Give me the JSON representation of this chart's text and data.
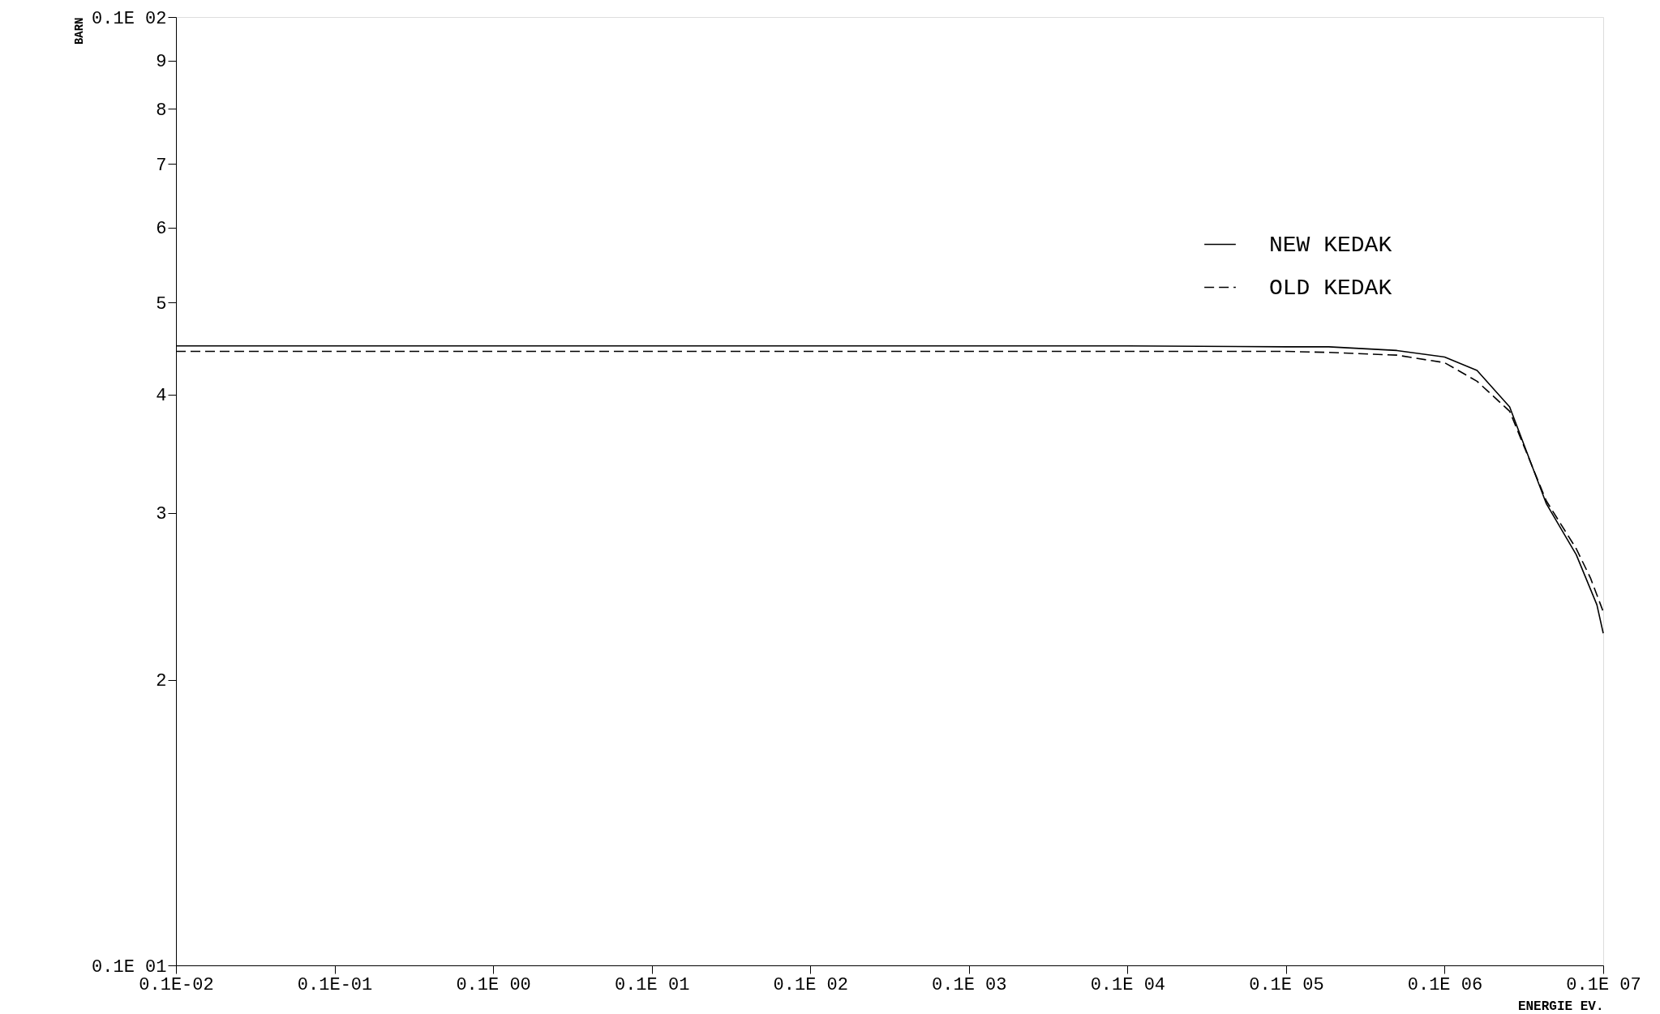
{
  "chart_data": {
    "type": "line",
    "xlabel": "ENERGIE EV.",
    "ylabel": "BARN",
    "log": "xy",
    "grid": false,
    "legend": "top right",
    "marker": "none",
    "xlim": [
      0.001,
      1000000
    ],
    "ylim": [
      1,
      10
    ],
    "xticks": [
      {
        "value": 0.001,
        "label": "0.1E-02"
      },
      {
        "value": 0.01,
        "label": "0.1E-01"
      },
      {
        "value": 0.1,
        "label": "0.1E 00"
      },
      {
        "value": 1,
        "label": "0.1E 01"
      },
      {
        "value": 10,
        "label": "0.1E 02"
      },
      {
        "value": 100,
        "label": "0.1E 03"
      },
      {
        "value": 1000,
        "label": "0.1E 04"
      },
      {
        "value": 10000,
        "label": "0.1E 05"
      },
      {
        "value": 100000,
        "label": "0.1E 06"
      },
      {
        "value": 1000000,
        "label": "0.1E 07"
      }
    ],
    "yticks": [
      {
        "value": 1,
        "label": "0.1E 01"
      },
      2,
      3,
      4,
      5,
      6,
      7,
      8,
      9,
      {
        "value": 10,
        "label": "0.1E 02"
      }
    ],
    "series": [
      {
        "name": "NEW KEDAK",
        "color": "#000000",
        "line_style": "solid",
        "x": [
          0.001,
          0.1,
          10,
          1000,
          10000,
          18600,
          50000,
          100000,
          160000,
          257000,
          437000,
          676000,
          912000,
          1000000
        ],
        "values": [
          4.5,
          4.5,
          4.5,
          4.5,
          4.49,
          4.49,
          4.45,
          4.38,
          4.24,
          3.88,
          3.07,
          2.71,
          2.4,
          2.24
        ]
      },
      {
        "name": "OLD KEDAK",
        "color": "#000000",
        "line_style": "dashed",
        "x": [
          0.001,
          0.1,
          10,
          1000,
          10000,
          18600,
          50000,
          100000,
          160000,
          257000,
          437000,
          676000,
          832000,
          1000000
        ],
        "values": [
          4.44,
          4.44,
          4.44,
          4.44,
          4.44,
          4.43,
          4.4,
          4.32,
          4.13,
          3.84,
          3.09,
          2.75,
          2.56,
          2.36
        ]
      }
    ]
  }
}
